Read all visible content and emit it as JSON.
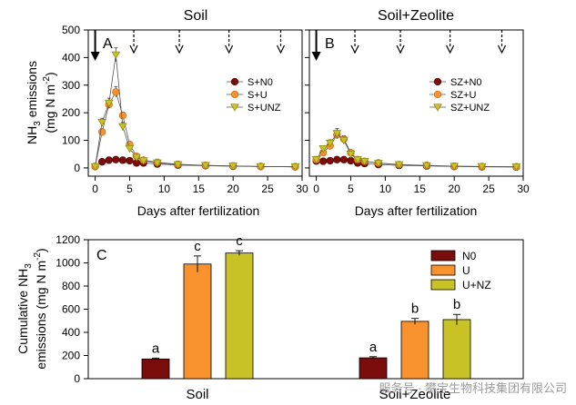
{
  "chart_data": [
    {
      "type": "line",
      "panel_letter": "A",
      "title": "Soil",
      "xlabel": "",
      "ylabel": "NH3 emissions (mg N m-2)",
      "xlim": [
        -1,
        30
      ],
      "ylim": [
        -30,
        500
      ],
      "x_ticks": [
        0,
        5,
        10,
        15,
        20,
        25,
        30
      ],
      "y_ticks": [
        0,
        100,
        200,
        300,
        400,
        500
      ],
      "fertilization_days": [
        0,
        5.6,
        12.2,
        19.4,
        26.9
      ],
      "legend": [
        "S+N0",
        "S+U",
        "S+UNZ"
      ],
      "series": [
        {
          "name": "S+N0",
          "marker": "circle",
          "color": "#7a0c0c",
          "stroke": "#5a0000",
          "x": [
            0,
            1,
            2,
            3,
            4,
            5,
            6,
            7,
            9,
            12,
            16,
            20,
            24,
            29
          ],
          "y": [
            5,
            22,
            28,
            30,
            28,
            26,
            18,
            18,
            14,
            10,
            8,
            6,
            5,
            4
          ]
        },
        {
          "name": "S+U",
          "marker": "circle",
          "color": "#f7922e",
          "stroke": "#c86a10",
          "x": [
            0,
            1,
            2,
            3,
            4,
            5,
            6,
            7,
            9,
            12,
            16,
            20,
            24,
            29
          ],
          "y": [
            5,
            130,
            230,
            275,
            190,
            85,
            42,
            28,
            20,
            13,
            9,
            7,
            5,
            4
          ],
          "error": [
            0,
            12,
            15,
            20,
            12,
            10,
            6,
            4,
            3,
            2,
            2,
            1,
            1,
            1
          ]
        },
        {
          "name": "S+UNZ",
          "marker": "triangle-down",
          "color": "#c9c227",
          "stroke": "#8a8410",
          "x": [
            0,
            1,
            2,
            3,
            4,
            5,
            6,
            7,
            9,
            12,
            16,
            20,
            24,
            29
          ],
          "y": [
            5,
            165,
            235,
            410,
            150,
            70,
            38,
            26,
            18,
            12,
            9,
            7,
            5,
            4
          ],
          "error": [
            0,
            15,
            18,
            25,
            15,
            8,
            5,
            4,
            3,
            2,
            2,
            1,
            1,
            1
          ]
        }
      ]
    },
    {
      "type": "line",
      "panel_letter": "B",
      "title": "Soil+Zeolite",
      "xlabel": "Days after fertilization",
      "ylabel": "",
      "xlim": [
        -1,
        30
      ],
      "ylim": [
        -30,
        500
      ],
      "x_ticks": [
        0,
        5,
        10,
        15,
        20,
        25,
        30
      ],
      "y_ticks": [
        0,
        100,
        200,
        300,
        400,
        500
      ],
      "fertilization_days": [
        0,
        5.6,
        12.2,
        19.4,
        26.9
      ],
      "legend": [
        "SZ+N0",
        "SZ+U",
        "SZ+UNZ"
      ],
      "series": [
        {
          "name": "SZ+N0",
          "marker": "circle",
          "color": "#7a0c0c",
          "stroke": "#5a0000",
          "x": [
            0,
            1,
            2,
            3,
            4,
            5,
            6,
            7,
            9,
            12,
            16,
            20,
            24,
            29
          ],
          "y": [
            25,
            24,
            26,
            30,
            30,
            26,
            18,
            16,
            12,
            9,
            7,
            5,
            4,
            3
          ]
        },
        {
          "name": "SZ+U",
          "marker": "circle",
          "color": "#f7922e",
          "stroke": "#c86a10",
          "x": [
            0,
            1,
            2,
            3,
            4,
            5,
            6,
            7,
            9,
            12,
            16,
            20,
            24,
            29
          ],
          "y": [
            30,
            55,
            80,
            120,
            105,
            55,
            30,
            24,
            18,
            12,
            9,
            6,
            5,
            4
          ],
          "error": [
            0,
            8,
            10,
            15,
            12,
            8,
            5,
            4,
            3,
            2,
            1,
            1,
            1,
            1
          ]
        },
        {
          "name": "SZ+UNZ",
          "marker": "triangle-down",
          "color": "#c9c227",
          "stroke": "#8a8410",
          "x": [
            0,
            1,
            2,
            3,
            4,
            5,
            6,
            7,
            9,
            12,
            16,
            20,
            24,
            29
          ],
          "y": [
            30,
            70,
            90,
            125,
            100,
            50,
            30,
            24,
            17,
            12,
            8,
            6,
            5,
            4
          ],
          "error": [
            0,
            10,
            12,
            18,
            12,
            8,
            5,
            4,
            3,
            2,
            1,
            1,
            1,
            1
          ]
        }
      ]
    },
    {
      "type": "bar",
      "panel_letter": "C",
      "title": "",
      "ylabel": "Cumulative NH3 emissions (mg N m-2)",
      "categories": [
        "Soil",
        "Soil+Zeolite"
      ],
      "ylim": [
        0,
        1200
      ],
      "y_ticks": [
        0,
        200,
        400,
        600,
        800,
        1000,
        1200
      ],
      "legend": [
        "N0",
        "U",
        "U+NZ"
      ],
      "series": [
        {
          "name": "N0",
          "color": "#7a0c0c",
          "values": [
            170,
            180
          ],
          "error": [
            8,
            10
          ],
          "letters": [
            "a",
            "a"
          ]
        },
        {
          "name": "U",
          "color": "#f7922e",
          "values": [
            990,
            495
          ],
          "error": [
            70,
            25
          ],
          "letters": [
            "c",
            "b"
          ]
        },
        {
          "name": "U+NZ",
          "color": "#c9c227",
          "values": [
            1085,
            510
          ],
          "error": [
            20,
            45
          ],
          "letters": [
            "c",
            "b"
          ]
        }
      ]
    }
  ],
  "labels": {
    "ylabel_top_line1": "NH",
    "ylabel_top_sub": "3",
    "ylabel_top_line1_rest": " emissions",
    "ylabel_top_line2": "(mg N m",
    "ylabel_top_sup": "-2",
    "ylabel_top_line2_rest": ")",
    "ylabel_bottom_line1": "Cumulative NH",
    "ylabel_bottom_sub": "3",
    "ylabel_bottom_line2": "emissions (mg N m",
    "ylabel_bottom_sup": "-2",
    "ylabel_bottom_line2_rest": ")",
    "xlabel_top": "Days after fertilization"
  },
  "watermark": "服务号 · 攀宝生物科技集团有限公司"
}
